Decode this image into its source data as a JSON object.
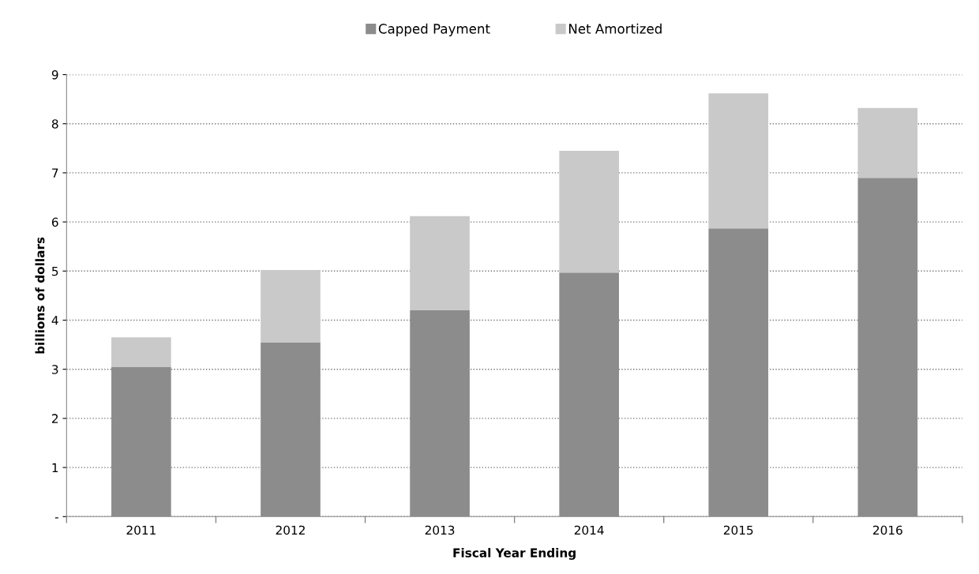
{
  "chart_data": {
    "type": "bar",
    "stacked": true,
    "xlabel": "Fiscal Year Ending",
    "ylabel": "billions of dollars",
    "categories": [
      "2011",
      "2012",
      "2013",
      "2014",
      "2015",
      "2016"
    ],
    "series": [
      {
        "name": "Capped Payment",
        "color": "#8c8c8c",
        "values": [
          3.05,
          3.55,
          4.2,
          4.97,
          5.87,
          6.9
        ]
      },
      {
        "name": "Net Amortized",
        "color": "#c9c9c9",
        "values": [
          0.6,
          1.47,
          1.92,
          2.48,
          2.75,
          1.42
        ]
      }
    ],
    "ylim": [
      0,
      9
    ],
    "yticks": [
      {
        "value": 0,
        "label": "-"
      },
      1,
      2,
      3,
      4,
      5,
      6,
      7,
      8,
      9
    ],
    "grid": "y",
    "legend": "top"
  }
}
